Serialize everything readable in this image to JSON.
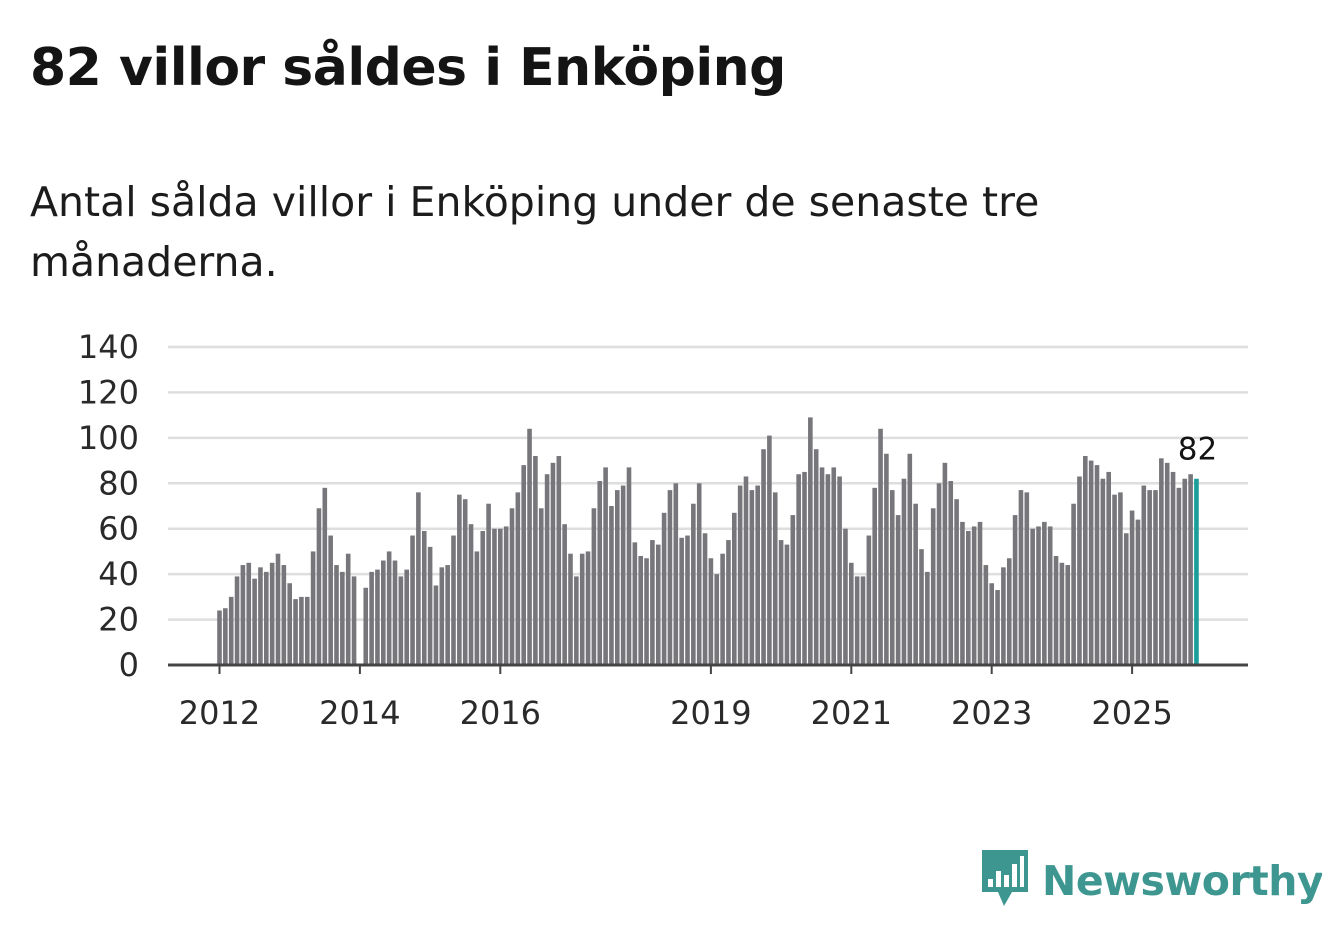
{
  "title": "82 villor såldes i Enköping",
  "subtitle": "Antal sålda villor i Enköping under de senaste tre månaderna.",
  "logo": {
    "text": "Newsworthy",
    "icon": "newsworthy-logo-icon"
  },
  "colors": {
    "bar": "#77767b",
    "highlight": "#1b9e9a",
    "grid": "#dedede",
    "axis": "#444444",
    "logo": "#3d9690"
  },
  "chart_data": {
    "type": "bar",
    "title": "82 villor såldes i Enköping",
    "xlabel": "",
    "ylabel": "",
    "ylim": [
      0,
      140
    ],
    "yticks": [
      0,
      20,
      40,
      60,
      80,
      100,
      120,
      140
    ],
    "xticks": [
      {
        "label": "2012",
        "index": 0
      },
      {
        "label": "2014",
        "index": 24
      },
      {
        "label": "2016",
        "index": 48
      },
      {
        "label": "2019",
        "index": 84
      },
      {
        "label": "2021",
        "index": 108
      },
      {
        "label": "2023",
        "index": 132
      },
      {
        "label": "2025",
        "index": 156
      }
    ],
    "start": "2012-01",
    "annotation": {
      "text": "82",
      "index": 167
    },
    "highlight_index": 167,
    "values": [
      24,
      25,
      30,
      39,
      44,
      45,
      38,
      43,
      41,
      45,
      49,
      44,
      36,
      29,
      30,
      30,
      50,
      69,
      78,
      57,
      44,
      41,
      49,
      39,
      0,
      34,
      41,
      42,
      46,
      50,
      46,
      39,
      42,
      57,
      76,
      59,
      52,
      35,
      43,
      44,
      57,
      75,
      73,
      62,
      50,
      59,
      71,
      60,
      60,
      61,
      69,
      76,
      88,
      104,
      92,
      69,
      84,
      89,
      92,
      62,
      49,
      39,
      49,
      50,
      69,
      81,
      87,
      70,
      77,
      79,
      87,
      54,
      48,
      47,
      55,
      53,
      67,
      77,
      80,
      56,
      57,
      71,
      80,
      58,
      47,
      40,
      49,
      55,
      67,
      79,
      83,
      77,
      79,
      95,
      101,
      76,
      55,
      53,
      66,
      84,
      85,
      109,
      95,
      87,
      84,
      87,
      83,
      60,
      45,
      39,
      39,
      57,
      78,
      104,
      93,
      77,
      66,
      82,
      93,
      71,
      51,
      41,
      69,
      80,
      89,
      81,
      73,
      63,
      59,
      61,
      63,
      44,
      36,
      33,
      43,
      47,
      66,
      77,
      76,
      60,
      61,
      63,
      61,
      48,
      45,
      44,
      71,
      83,
      92,
      90,
      88,
      82,
      85,
      75,
      76,
      58,
      68,
      64,
      79,
      77,
      77,
      91,
      89,
      85,
      78,
      82,
      84,
      82
    ]
  }
}
